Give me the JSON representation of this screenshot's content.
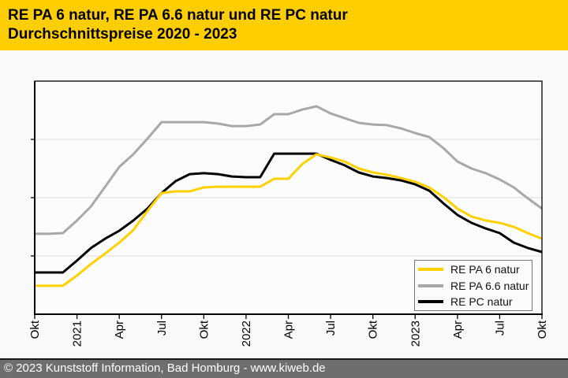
{
  "header": {
    "title_line1": "RE PA 6 natur, RE PA 6.6 natur und RE PC natur",
    "title_line2": "Durchschnittspreise 2020 - 2023",
    "background": "#FFCE00",
    "text_color": "#000000"
  },
  "footer": {
    "text": "© 2023 Kunststoff Information, Bad Homburg - www.kiweb.de",
    "background": "#6E6E6E",
    "text_color": "#FFFFFF"
  },
  "chart_data": {
    "type": "line",
    "title": "RE PA 6 natur, RE PA 6.6 natur und RE PC natur",
    "subtitle": "Durchschnittspreise 2020 - 2023",
    "x_interval": "monthly",
    "x_start": "Okt 2020",
    "x_end": "Okt 2023",
    "x_tick_labels": [
      "Okt",
      "2021",
      "Apr",
      "Jul",
      "Okt",
      "2022",
      "Apr",
      "Jul",
      "Okt",
      "2023",
      "Apr",
      "Jul",
      "Okt"
    ],
    "x_tick_positions": [
      0,
      3,
      6,
      9,
      12,
      15,
      18,
      21,
      24,
      27,
      30,
      33,
      36
    ],
    "y_axis": {
      "numeric_labels_visible": false,
      "ylim": [
        0,
        100
      ]
    },
    "gridline_values": [
      25,
      50,
      75
    ],
    "grid": "horizontal",
    "legend_position": "bottom-right",
    "series": [
      {
        "name": "RE PA 6 natur",
        "color": "#FFD100",
        "values": [
          12.2,
          12.2,
          12.2,
          16.6,
          21.6,
          26.0,
          30.7,
          36.1,
          44.3,
          52.0,
          52.7,
          52.7,
          54.4,
          54.7,
          54.7,
          54.7,
          54.7,
          58.1,
          58.1,
          64.5,
          68.6,
          67.2,
          65.5,
          62.5,
          60.8,
          59.8,
          58.4,
          56.8,
          54.4,
          50.3,
          45.3,
          41.9,
          40.2,
          39.2,
          37.5,
          34.8,
          32.4
        ]
      },
      {
        "name": "RE PA 6.6 natur",
        "color": "#A8A8A8",
        "values": [
          34.5,
          34.5,
          34.8,
          40.2,
          46.3,
          54.7,
          63.2,
          68.6,
          75.3,
          82.4,
          82.4,
          82.4,
          82.4,
          81.8,
          80.7,
          80.7,
          81.4,
          85.8,
          85.8,
          87.8,
          89.2,
          86.1,
          84.1,
          82.1,
          81.4,
          81.1,
          79.7,
          77.7,
          76.0,
          71.3,
          65.5,
          62.5,
          60.5,
          57.8,
          54.4,
          49.7,
          45.3
        ]
      },
      {
        "name": "RE PC natur",
        "color": "#000000",
        "values": [
          17.9,
          17.9,
          17.9,
          23.0,
          28.4,
          32.4,
          35.8,
          40.2,
          45.3,
          52.0,
          57.1,
          60.1,
          60.5,
          60.1,
          59.1,
          58.8,
          58.8,
          68.9,
          68.9,
          68.9,
          68.9,
          66.2,
          63.9,
          60.8,
          59.1,
          58.4,
          57.4,
          55.7,
          53.0,
          47.6,
          42.6,
          39.2,
          36.8,
          34.8,
          30.7,
          28.4,
          26.7
        ]
      }
    ]
  }
}
